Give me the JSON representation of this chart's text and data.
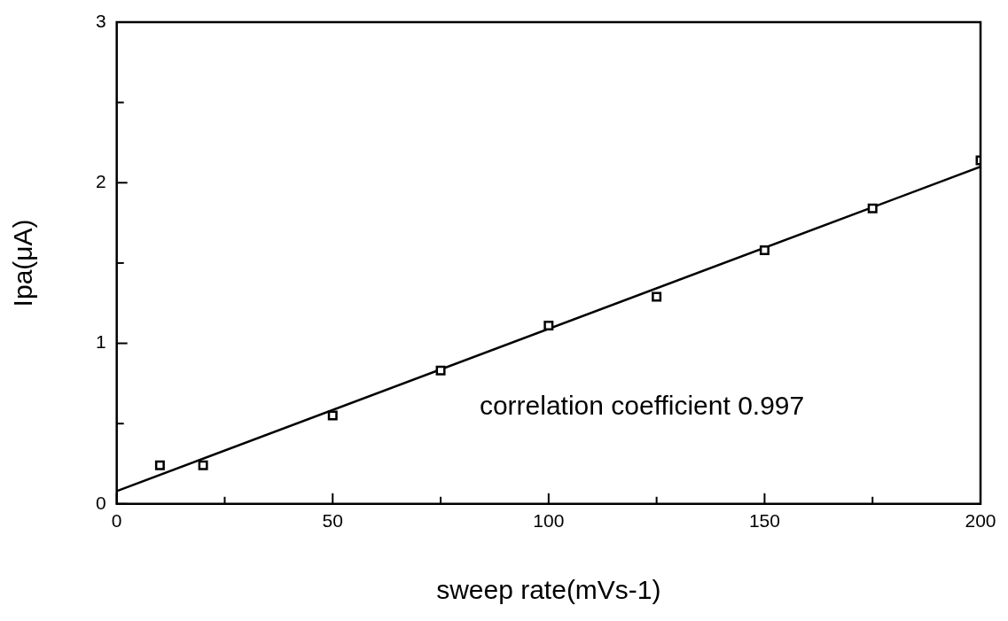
{
  "chart_data": {
    "type": "scatter",
    "xlabel": "sweep rate(mVs-1)",
    "ylabel": "Ipa(μA)",
    "x": [
      10,
      20,
      50,
      75,
      100,
      125,
      150,
      175,
      200
    ],
    "series": [
      {
        "type": "scatter",
        "color": "#000000",
        "marker": "square",
        "values": [
          0.24,
          0.24,
          0.55,
          0.83,
          1.11,
          1.29,
          1.58,
          1.84,
          2.14
        ]
      },
      {
        "type": "line",
        "color": "#000000",
        "marker": "none",
        "x": [
          0,
          200
        ],
        "values": [
          0.08,
          2.1
        ]
      }
    ],
    "xlim": [
      0,
      200
    ],
    "ylim": [
      0,
      3
    ],
    "xticks": [
      0,
      {
        "value": 25,
        "label": null
      },
      50,
      {
        "value": 75,
        "label": null
      },
      100,
      {
        "value": 125,
        "label": null
      },
      150,
      {
        "value": 175,
        "label": null
      },
      200
    ],
    "yticks": [
      0,
      {
        "value": 0.5,
        "label": null
      },
      1,
      {
        "value": 1.5,
        "label": null
      },
      2,
      {
        "value": 2.5,
        "label": null
      },
      3
    ],
    "annotations": [
      "correlation coefficient 0.997"
    ],
    "legend": false
  }
}
